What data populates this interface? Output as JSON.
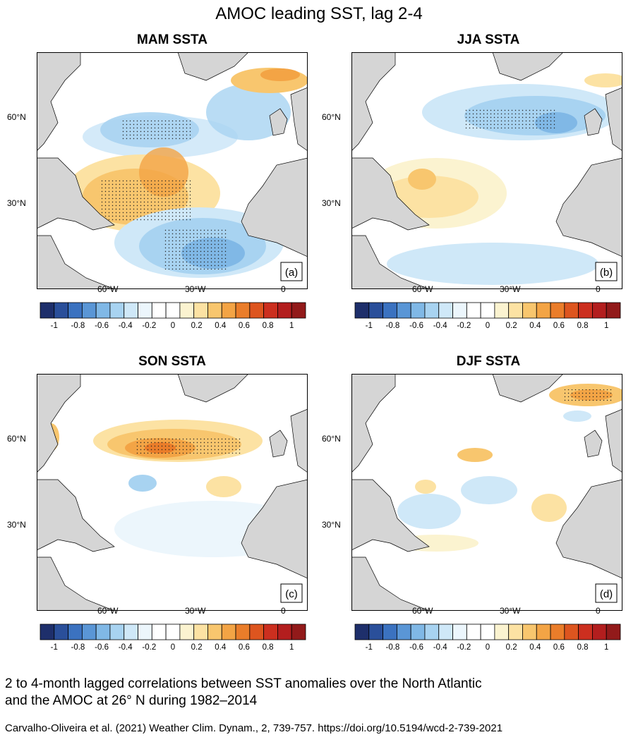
{
  "figure": {
    "title": "AMOC leading SST, lag 2-4",
    "panels": [
      {
        "title": "MAM SSTA",
        "tag": "(a)"
      },
      {
        "title": "JJA SSTA",
        "tag": "(b)"
      },
      {
        "title": "SON SSTA",
        "tag": "(c)"
      },
      {
        "title": "DJF SSTA",
        "tag": "(d)"
      }
    ],
    "lat_ticks": [
      "60°N",
      "30°N"
    ],
    "lon_ticks": [
      "60°W",
      "30°W",
      "0"
    ],
    "colorbar": {
      "labels": [
        "-1",
        "-0.8",
        "-0.6",
        "-0.4",
        "-0.2",
        "0",
        "0.2",
        "0.4",
        "0.6",
        "0.8",
        "1"
      ],
      "colors": [
        "#1e2f6b",
        "#2a4f9a",
        "#3b72c0",
        "#5a96d6",
        "#80b8e6",
        "#a8d3f1",
        "#cfe8f8",
        "#ecf6fc",
        "#ffffff",
        "#ffffff",
        "#fbf3d0",
        "#fce2a3",
        "#f8c66e",
        "#f3a445",
        "#ea7d2a",
        "#dd551f",
        "#cc2f1f",
        "#b31e1e",
        "#921a1a"
      ],
      "ticks_at_boundaries": true
    },
    "palette": {
      "land": "#d5d5d5",
      "ocean": "#ffffff"
    }
  },
  "caption": "2 to 4-month lagged correlations between SST anomalies over the North Atlantic\nand the AMOC at 26° N during 1982–2014",
  "caption_lines": [
    "2 to 4-month lagged correlations between SST anomalies over the North Atlantic",
    "and the AMOC at 26° N during 1982–2014"
  ],
  "citation": "Carvalho-Oliveira et al. (2021) Weather Clim. Dynam., 2, 739-757. https://doi.org/10.5194/wcd-2-739-2021"
}
